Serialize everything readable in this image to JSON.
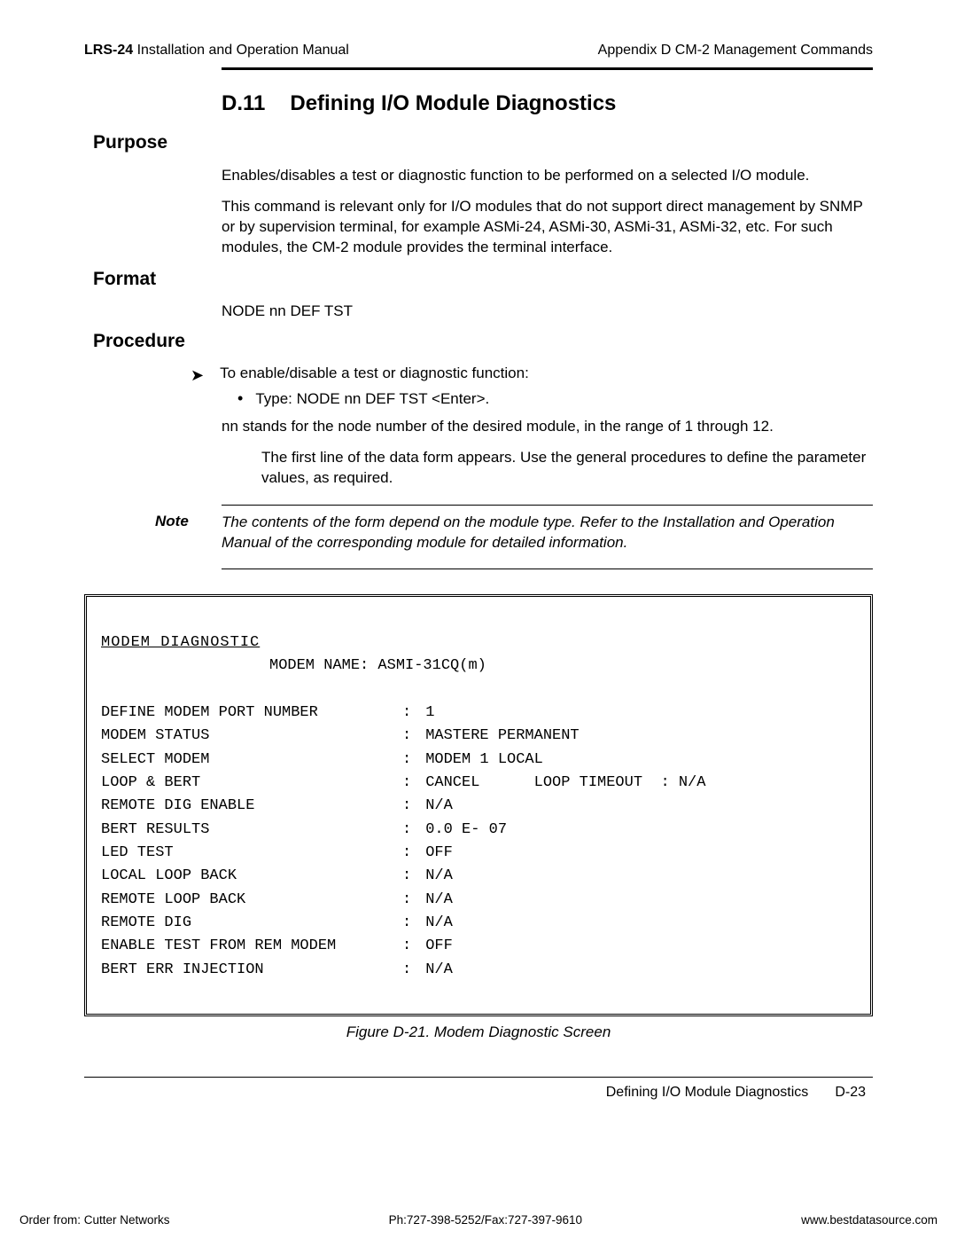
{
  "header": {
    "left_bold": "LRS-24",
    "left_rest": " Installation and Operation Manual",
    "right": "Appendix D  CM-2 Management Commands"
  },
  "title": {
    "num": "D.11",
    "text": "Defining I/O Module Diagnostics"
  },
  "purpose": {
    "heading": "Purpose",
    "p1": "Enables/disables a test or diagnostic function to be performed on a selected I/O module.",
    "p2": "This command is relevant only for I/O modules that do not support direct management by SNMP or by supervision terminal, for example ASMi-24, ASMi-30, ASMi-31, ASMi-32, etc. For such modules, the CM-2 module provides the terminal interface."
  },
  "format": {
    "heading": "Format",
    "line": "NODE nn DEF TST"
  },
  "procedure": {
    "heading": "Procedure",
    "lead": "To enable/disable a test or diagnostic function:",
    "bullet": "Type: NODE nn DEF TST <Enter>.",
    "p1": "nn stands for the node number of the desired module, in the range of 1 through 12.",
    "p2": "The first line of the data form appears. Use the general procedures to define the parameter values, as required."
  },
  "note": {
    "label": "Note",
    "text": "The contents of the form depend on the module type. Refer to the Installation and Operation Manual of the corresponding module for detailed information."
  },
  "terminal": {
    "title": "MODEM DIAGNOSTIC",
    "name_label": "MODEM NAME:",
    "name_value": "ASMI-31CQ(m)",
    "rows": [
      {
        "label": "DEFINE MODEM PORT NUMBER",
        "value": "1"
      },
      {
        "label": "MODEM STATUS",
        "value": "MASTERE PERMANENT"
      },
      {
        "label": "SELECT MODEM",
        "value": "MODEM 1 LOCAL"
      },
      {
        "label": "LOOP & BERT",
        "value": "CANCEL      LOOP TIMEOUT  : N/A"
      },
      {
        "label": "REMOTE DIG ENABLE",
        "value": "N/A"
      },
      {
        "label": "BERT RESULTS",
        "value": "0.0 E- 07"
      },
      {
        "label": "LED TEST",
        "value": "OFF"
      },
      {
        "label": "LOCAL LOOP BACK",
        "value": "N/A"
      },
      {
        "label": "REMOTE LOOP BACK",
        "value": "N/A"
      },
      {
        "label": "REMOTE DIG",
        "value": "N/A"
      },
      {
        "label": "ENABLE TEST FROM REM MODEM",
        "value": "OFF"
      },
      {
        "label": "BERT ERR INJECTION",
        "value": "N/A"
      }
    ]
  },
  "figure_caption": "Figure D-21.  Modem Diagnostic Screen",
  "footer_top": {
    "section": "Defining I/O Module Diagnostics",
    "page": "D-23"
  },
  "footer_bottom": {
    "left": "Order from: Cutter Networks",
    "center": "Ph:727-398-5252/Fax:727-397-9610",
    "right": "www.bestdatasource.com"
  }
}
